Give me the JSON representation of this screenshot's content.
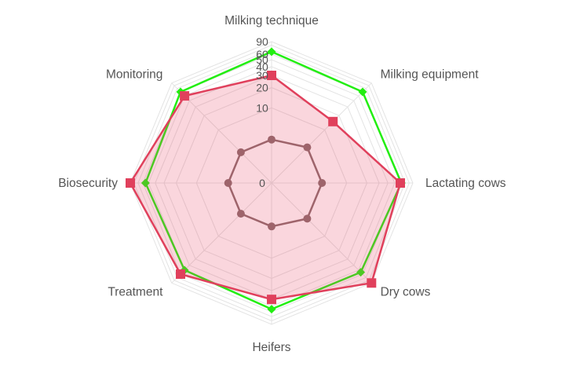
{
  "chart_data": {
    "type": "radar",
    "title": "",
    "categories": [
      "Milking technique",
      "Milking equipment",
      "Lactating cows",
      "Dry cows",
      "Heifers",
      "Treatment",
      "Biosecurity",
      "Monitoring"
    ],
    "r_ticks": [
      0,
      10,
      20,
      30,
      40,
      50,
      60,
      90
    ],
    "r_axis_scale": "log",
    "series": [
      {
        "values": [
          3,
          4,
          4,
          4,
          3,
          3,
          3,
          3
        ],
        "color": "#8a6e6e",
        "marker": "circle",
        "fill": false
      },
      {
        "values": [
          65,
          60,
          62,
          55,
          55,
          50,
          55,
          60
        ],
        "color": "#22ee11",
        "marker": "diamond",
        "fill": false
      },
      {
        "values": [
          30,
          15,
          60,
          90,
          40,
          60,
          90,
          50
        ],
        "color": "#e0405c",
        "marker": "square",
        "fill": true
      }
    ],
    "grid": true,
    "legend": "none"
  }
}
